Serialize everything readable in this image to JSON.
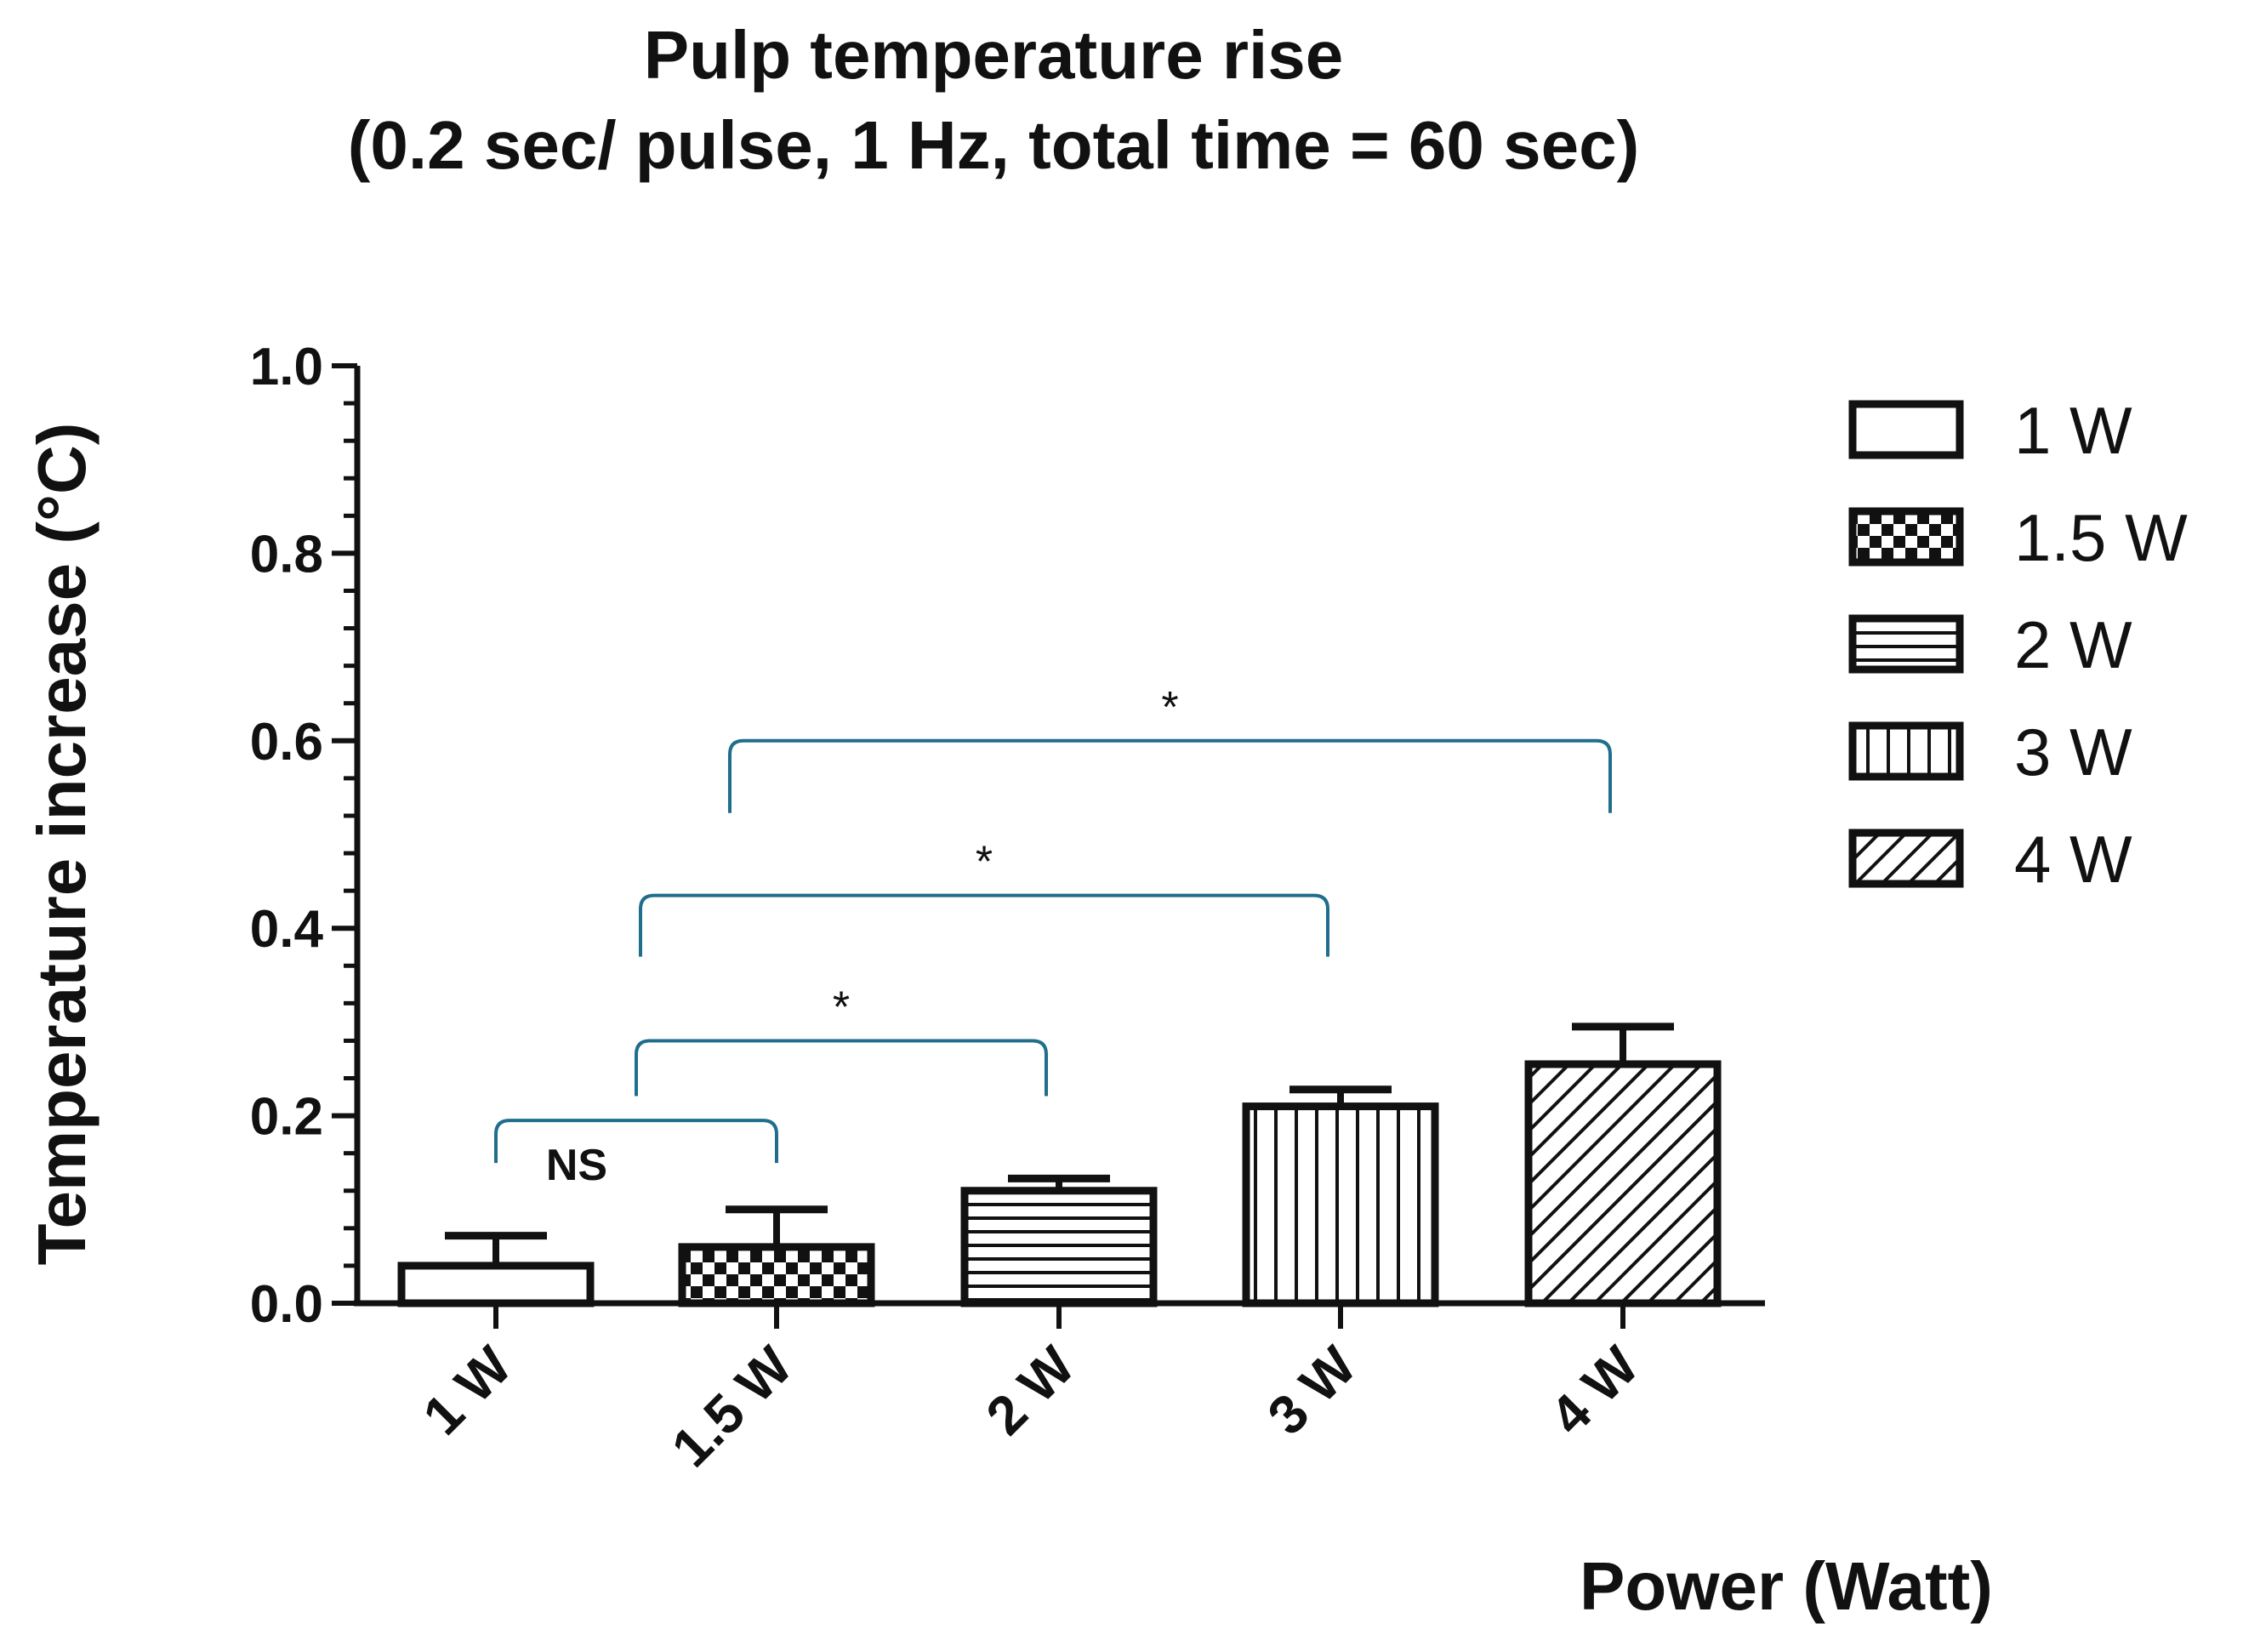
{
  "chart_data": {
    "type": "bar",
    "title": "Pulp temperature rise",
    "subtitle": "(0.2 sec/ pulse, 1 Hz, total time = 60 sec)",
    "xlabel": "Power (Watt)",
    "ylabel": "Temperature increase (°C)",
    "ylim": [
      0,
      1.0
    ],
    "y_ticks": [
      0.0,
      0.2,
      0.4,
      0.6,
      0.8,
      1.0
    ],
    "y_tick_labels": [
      "0.0",
      "0.2",
      "0.4",
      "0.6",
      "0.8",
      "1.0"
    ],
    "categories": [
      "1 W",
      "1.5 W",
      "2 W",
      "3 W",
      "4 W"
    ],
    "values": [
      0.04,
      0.06,
      0.12,
      0.21,
      0.255
    ],
    "error_upper": [
      0.072,
      0.1,
      0.133,
      0.228,
      0.295
    ],
    "patterns": [
      "empty",
      "checker",
      "horizontal",
      "vertical",
      "diagonal"
    ],
    "legend": {
      "position": "right",
      "entries": [
        "1 W",
        "1.5 W",
        "2 W",
        "3 W",
        "4 W"
      ]
    },
    "significance": [
      {
        "from": "1 W",
        "to": "1.5 W",
        "label": "NS",
        "level": 0.195
      },
      {
        "from": "1.5 W",
        "to": "2 W",
        "label": "*",
        "level": 0.28
      },
      {
        "from": "1.5 W",
        "to": "3 W",
        "label": "*",
        "level": 0.435
      },
      {
        "from": "1.5 W",
        "to": "4 W",
        "label": "*",
        "level": 0.6
      }
    ],
    "colors": {
      "ink": "#111111",
      "bracket": "#1f6e8c",
      "background": "#ffffff"
    }
  }
}
